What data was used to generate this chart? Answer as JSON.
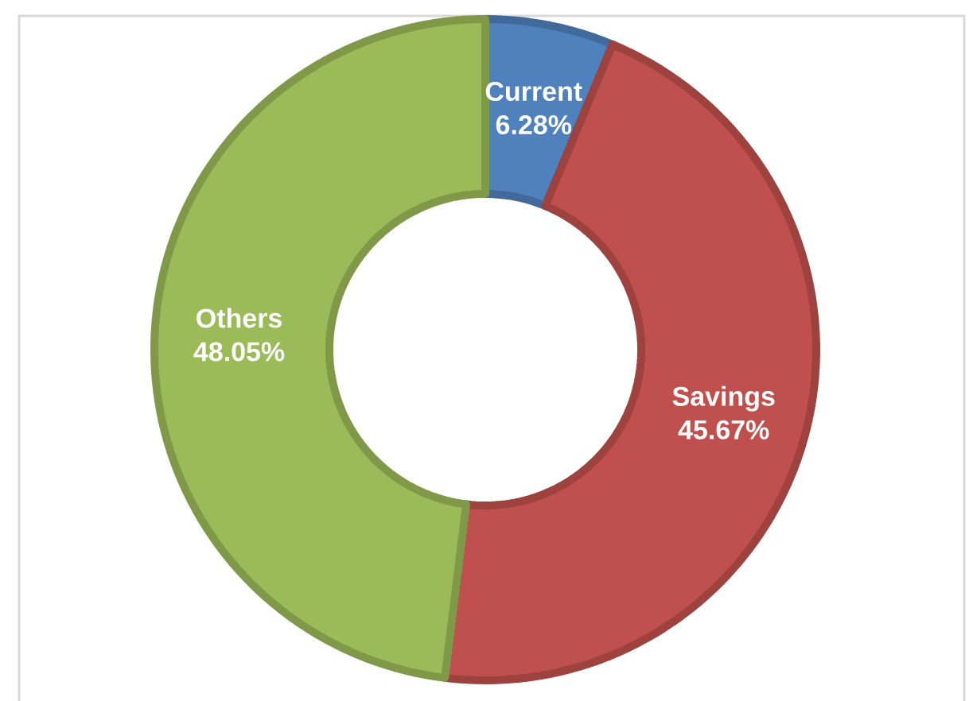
{
  "chart_data": {
    "type": "donut",
    "categories": [
      "Current",
      "Savings",
      "Others"
    ],
    "values": [
      6.28,
      45.67,
      48.05
    ],
    "colors": [
      "#4f81bd",
      "#c0504d",
      "#9bbb59"
    ],
    "value_labels": [
      "6.28%",
      "45.67%",
      "48.05%"
    ]
  }
}
